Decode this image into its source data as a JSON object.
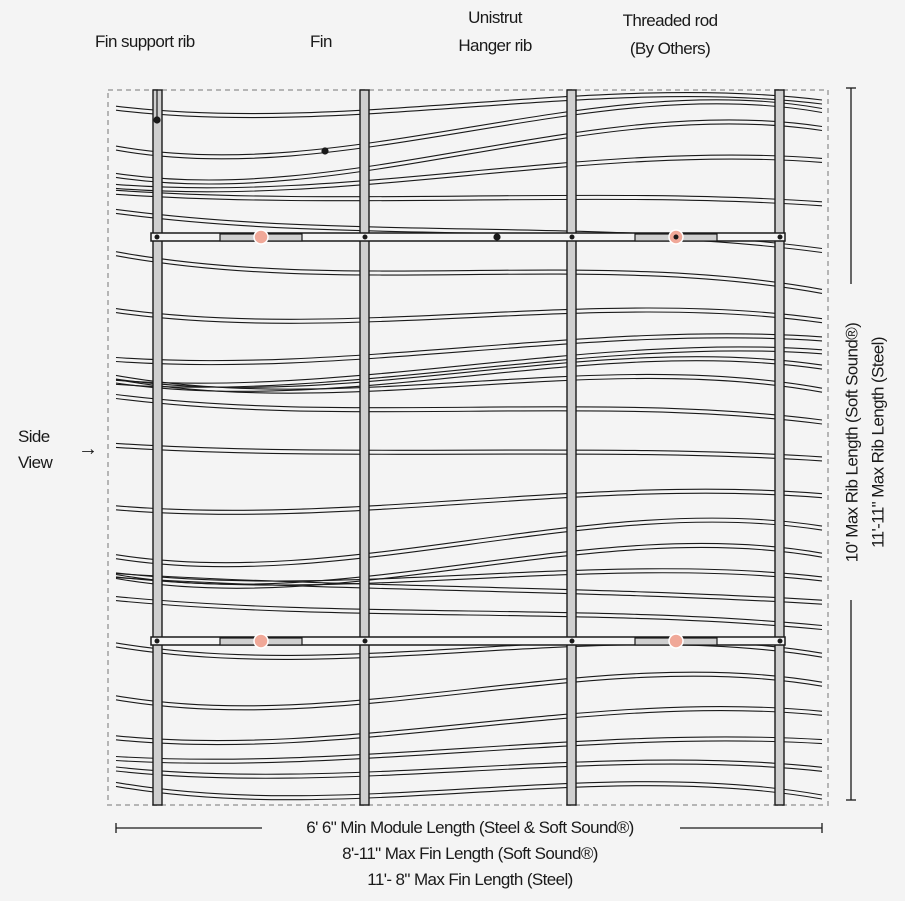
{
  "labels": {
    "fin_support_rib": "Fin support rib",
    "fin": "Fin",
    "unistrut_line1": "Unistrut",
    "unistrut_line2": "Hanger rib",
    "threaded_line1": "Threaded rod",
    "threaded_line2": "(By Others)",
    "side_line1": "Side",
    "side_line2": "View",
    "side_arrow": "→"
  },
  "dimensions": {
    "bottom_line1": "6' 6\" Min Module Length (Steel & Soft Sound®)",
    "bottom_line2": "8'-11\" Max Fin Length (Soft Sound®)",
    "bottom_line3": "11'- 8\" Max Fin Length (Steel)",
    "right_line1": "10' Max Rib Length (Soft Sound®)",
    "right_line2": "11'-11\" Max Rib Length (Steel)"
  },
  "colors": {
    "background": "#f4f4f4",
    "line": "#1a1a1a",
    "rib_fill": "#cfcfcf",
    "rod_fill": "#f0a898",
    "border_dash": "#b5b5b5"
  }
}
